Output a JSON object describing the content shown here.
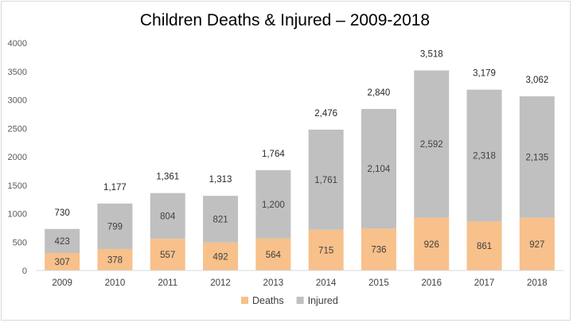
{
  "chart_data": {
    "type": "bar",
    "stacked": true,
    "title": "Children Deaths & Injured – 2009-2018",
    "categories": [
      "2009",
      "2010",
      "2011",
      "2012",
      "2013",
      "2014",
      "2015",
      "2016",
      "2017",
      "2018"
    ],
    "series": [
      {
        "name": "Deaths",
        "color": "#f8c08b",
        "values": [
          307,
          378,
          557,
          492,
          564,
          715,
          736,
          926,
          861,
          927
        ],
        "labels": [
          "307",
          "378",
          "557",
          "492",
          "564",
          "715",
          "736",
          "926",
          "861",
          "927"
        ]
      },
      {
        "name": "Injured",
        "color": "#c0c0c0",
        "values": [
          423,
          799,
          804,
          821,
          1200,
          1761,
          2104,
          2592,
          2318,
          2135
        ],
        "labels": [
          "423",
          "799",
          "804",
          "821",
          "1,200",
          "1,761",
          "2,104",
          "2,592",
          "2,318",
          "2,135"
        ]
      }
    ],
    "totals": [
      "730",
      "1,177",
      "1,361",
      "1,313",
      "1,764",
      "2,476",
      "2,840",
      "3,518",
      "3,179",
      "3,062"
    ],
    "ylim": [
      0,
      4000
    ],
    "yticks": [
      0,
      500,
      1000,
      1500,
      2000,
      2500,
      3000,
      3500,
      4000
    ],
    "grid": false,
    "legend": "bottom-center",
    "xlabel": "",
    "ylabel": ""
  }
}
